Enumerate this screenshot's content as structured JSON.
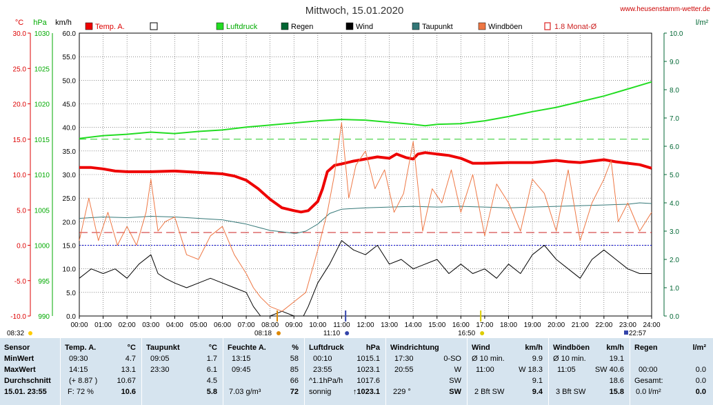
{
  "header": {
    "title": "Mittwoch, 15.01.2020",
    "website": "www.heusenstamm-wetter.de"
  },
  "chart_data": {
    "type": "line",
    "units": {
      "temp": "°C",
      "pressure": "hPa",
      "wind": "km/h",
      "rain": "l/m²"
    },
    "ticks": {
      "temp": [
        "30.0",
        "25.0",
        "20.0",
        "15.0",
        "10.0",
        "5.0",
        "0.0",
        "-5.0",
        "-10.0"
      ],
      "pressure": [
        "1030",
        "1025",
        "1020",
        "1015",
        "1010",
        "1005",
        "1000",
        "995",
        "990"
      ],
      "wind": [
        "60.0",
        "55.0",
        "50.0",
        "45.0",
        "40.0",
        "35.0",
        "30.0",
        "25.0",
        "20.0",
        "15.0",
        "10.0",
        "5.0",
        "0.0"
      ],
      "rain": [
        "10.0",
        "9.0",
        "8.0",
        "7.0",
        "6.0",
        "5.0",
        "4.0",
        "3.0",
        "2.0",
        "1.0",
        "0.0"
      ],
      "time": [
        "00:00",
        "01:00",
        "02:00",
        "03:00",
        "04:00",
        "05:00",
        "06:00",
        "07:00",
        "08:00",
        "09:00",
        "10:00",
        "11:00",
        "12:00",
        "13:00",
        "14:00",
        "15:00",
        "16:00",
        "17:00",
        "18:00",
        "19:00",
        "20:00",
        "21:00",
        "22:00",
        "23:00",
        "24:00"
      ]
    },
    "axis_ranges": {
      "temp": [
        -10,
        30
      ],
      "pressure": [
        990,
        1030
      ],
      "wind": [
        0,
        60
      ],
      "rain": [
        0,
        10
      ],
      "hours": [
        0,
        24
      ]
    },
    "legend": [
      {
        "label": "Temp. A.",
        "color": "#ee0000",
        "style": "filled"
      },
      {
        "label": "",
        "color": "#000000",
        "style": "empty"
      },
      {
        "label": "Luftdruck",
        "color": "#22dd22",
        "style": "filled"
      },
      {
        "label": "Regen",
        "color": "#006633",
        "style": "filled"
      },
      {
        "label": "Wind",
        "color": "#000000",
        "style": "filled"
      },
      {
        "label": "Taupunkt",
        "color": "#337777",
        "style": "filled"
      },
      {
        "label": "Windböen",
        "color": "#ee7744",
        "style": "filled"
      },
      {
        "label": "1.8 Monat-Ø",
        "color": "#dd2222",
        "style": "outline"
      }
    ],
    "sun_markers": {
      "sunrise": "08:18",
      "noon": "11:10",
      "sunset": "16:50",
      "left_label": "08:32",
      "right_label": "22:57"
    },
    "reference_lines": {
      "pressure_avg": 1015,
      "monthly_temp_avg": 1.8,
      "freezing": 0
    },
    "series": [
      {
        "name": "Temp. A.",
        "axis": "temp",
        "color": "#ee0000",
        "points": [
          [
            0,
            11.0
          ],
          [
            0.5,
            11.0
          ],
          [
            1,
            10.8
          ],
          [
            1.5,
            10.5
          ],
          [
            2,
            10.4
          ],
          [
            3,
            10.4
          ],
          [
            4,
            10.5
          ],
          [
            5,
            10.3
          ],
          [
            6,
            10.1
          ],
          [
            6.5,
            9.8
          ],
          [
            7,
            9.2
          ],
          [
            7.5,
            8.0
          ],
          [
            8,
            6.5
          ],
          [
            8.5,
            5.3
          ],
          [
            9,
            4.9
          ],
          [
            9.3,
            4.7
          ],
          [
            9.6,
            4.9
          ],
          [
            10,
            6.2
          ],
          [
            10.2,
            8.0
          ],
          [
            10.4,
            10.4
          ],
          [
            10.7,
            11.3
          ],
          [
            11,
            11.5
          ],
          [
            11.5,
            11.9
          ],
          [
            12,
            12.2
          ],
          [
            12.5,
            12.5
          ],
          [
            13,
            12.3
          ],
          [
            13.3,
            12.9
          ],
          [
            13.7,
            12.4
          ],
          [
            14,
            12.2
          ],
          [
            14.2,
            12.9
          ],
          [
            14.5,
            13.1
          ],
          [
            15,
            12.9
          ],
          [
            15.5,
            12.7
          ],
          [
            16,
            12.3
          ],
          [
            16.5,
            11.6
          ],
          [
            17,
            11.6
          ],
          [
            18,
            11.7
          ],
          [
            19,
            11.7
          ],
          [
            20,
            12.0
          ],
          [
            20.5,
            11.8
          ],
          [
            21,
            11.7
          ],
          [
            21.5,
            11.9
          ],
          [
            22,
            12.1
          ],
          [
            22.5,
            11.8
          ],
          [
            23,
            11.6
          ],
          [
            23.5,
            11.4
          ],
          [
            24,
            10.9
          ]
        ]
      },
      {
        "name": "Luftdruck",
        "axis": "pressure",
        "color": "#22dd22",
        "points": [
          [
            0,
            1015.1
          ],
          [
            1,
            1015.5
          ],
          [
            2,
            1015.7
          ],
          [
            3,
            1016.0
          ],
          [
            4,
            1015.8
          ],
          [
            5,
            1016.1
          ],
          [
            6,
            1016.3
          ],
          [
            7,
            1016.7
          ],
          [
            8,
            1017.0
          ],
          [
            9,
            1017.3
          ],
          [
            10,
            1017.6
          ],
          [
            11,
            1017.8
          ],
          [
            12,
            1017.7
          ],
          [
            13,
            1017.4
          ],
          [
            14,
            1017.1
          ],
          [
            14.5,
            1016.9
          ],
          [
            15,
            1017.1
          ],
          [
            16,
            1017.2
          ],
          [
            17,
            1017.6
          ],
          [
            18,
            1018.2
          ],
          [
            19,
            1018.9
          ],
          [
            20,
            1019.5
          ],
          [
            21,
            1020.3
          ],
          [
            22,
            1021.1
          ],
          [
            23,
            1022.1
          ],
          [
            24,
            1023.1
          ]
        ]
      },
      {
        "name": "Taupunkt",
        "axis": "temp",
        "color": "#337777",
        "points": [
          [
            0,
            3.8
          ],
          [
            1,
            4.0
          ],
          [
            2,
            3.9
          ],
          [
            3,
            4.1
          ],
          [
            4,
            4.0
          ],
          [
            5,
            3.8
          ],
          [
            6,
            3.6
          ],
          [
            7,
            3.0
          ],
          [
            8,
            2.1
          ],
          [
            8.5,
            1.9
          ],
          [
            9,
            1.7
          ],
          [
            9.1,
            1.7
          ],
          [
            9.5,
            2.0
          ],
          [
            10,
            3.0
          ],
          [
            10.5,
            4.5
          ],
          [
            11,
            5.1
          ],
          [
            12,
            5.3
          ],
          [
            13,
            5.4
          ],
          [
            14,
            5.5
          ],
          [
            15,
            5.4
          ],
          [
            16,
            5.5
          ],
          [
            17,
            5.4
          ],
          [
            18,
            5.3
          ],
          [
            19,
            5.4
          ],
          [
            20,
            5.5
          ],
          [
            21,
            5.6
          ],
          [
            22,
            5.7
          ],
          [
            23,
            5.8
          ],
          [
            23.5,
            6.0
          ],
          [
            24,
            5.9
          ]
        ]
      },
      {
        "name": "Wind",
        "axis": "wind",
        "color": "#000000",
        "points": [
          [
            0,
            8
          ],
          [
            0.5,
            10
          ],
          [
            1,
            9
          ],
          [
            1.5,
            10
          ],
          [
            2,
            8
          ],
          [
            2.5,
            11
          ],
          [
            3,
            13
          ],
          [
            3.3,
            9
          ],
          [
            3.6,
            8
          ],
          [
            4,
            7
          ],
          [
            4.5,
            6
          ],
          [
            5,
            7
          ],
          [
            5.5,
            8
          ],
          [
            6,
            7
          ],
          [
            6.5,
            6
          ],
          [
            7,
            5
          ],
          [
            7.3,
            2
          ],
          [
            7.6,
            0
          ],
          [
            8,
            0
          ],
          [
            8.5,
            1
          ],
          [
            9,
            0
          ],
          [
            9.4,
            0
          ],
          [
            9.6,
            2
          ],
          [
            10,
            7
          ],
          [
            10.5,
            11
          ],
          [
            11,
            16
          ],
          [
            11.5,
            14
          ],
          [
            12,
            13
          ],
          [
            12.5,
            15
          ],
          [
            13,
            11
          ],
          [
            13.5,
            12
          ],
          [
            14,
            10
          ],
          [
            14.5,
            11
          ],
          [
            15,
            12
          ],
          [
            15.5,
            9
          ],
          [
            16,
            11
          ],
          [
            16.5,
            9
          ],
          [
            17,
            10
          ],
          [
            17.5,
            8
          ],
          [
            18,
            11
          ],
          [
            18.5,
            9
          ],
          [
            19,
            13
          ],
          [
            19.5,
            15
          ],
          [
            20,
            12
          ],
          [
            20.5,
            10
          ],
          [
            21,
            8
          ],
          [
            21.5,
            12
          ],
          [
            22,
            14
          ],
          [
            22.5,
            12
          ],
          [
            23,
            10
          ],
          [
            23.5,
            9
          ],
          [
            24,
            9
          ]
        ]
      },
      {
        "name": "Windböen",
        "axis": "wind",
        "color": "#ee7744",
        "points": [
          [
            0,
            16
          ],
          [
            0.4,
            25
          ],
          [
            0.8,
            16
          ],
          [
            1.2,
            22
          ],
          [
            1.6,
            15
          ],
          [
            2,
            19
          ],
          [
            2.4,
            15
          ],
          [
            2.8,
            22
          ],
          [
            3,
            29
          ],
          [
            3.3,
            18
          ],
          [
            3.6,
            20
          ],
          [
            4,
            21
          ],
          [
            4.5,
            13
          ],
          [
            5,
            12
          ],
          [
            5.5,
            17
          ],
          [
            6,
            19
          ],
          [
            6.5,
            13
          ],
          [
            7,
            9
          ],
          [
            7.3,
            6
          ],
          [
            7.6,
            4
          ],
          [
            8,
            2
          ],
          [
            8.5,
            1
          ],
          [
            9,
            3
          ],
          [
            9.5,
            5
          ],
          [
            10,
            14
          ],
          [
            10.4,
            22
          ],
          [
            10.7,
            30
          ],
          [
            11,
            41
          ],
          [
            11.3,
            25
          ],
          [
            11.6,
            32
          ],
          [
            12,
            35
          ],
          [
            12.4,
            27
          ],
          [
            12.8,
            31
          ],
          [
            13.2,
            22
          ],
          [
            13.6,
            26
          ],
          [
            14,
            37
          ],
          [
            14.4,
            18
          ],
          [
            14.8,
            27
          ],
          [
            15.2,
            24
          ],
          [
            15.6,
            31
          ],
          [
            16,
            22
          ],
          [
            16.5,
            30
          ],
          [
            17,
            17
          ],
          [
            17.5,
            28
          ],
          [
            18,
            24
          ],
          [
            18.5,
            18
          ],
          [
            19,
            29
          ],
          [
            19.5,
            26
          ],
          [
            20,
            18
          ],
          [
            20.5,
            31
          ],
          [
            21,
            16
          ],
          [
            21.5,
            24
          ],
          [
            22,
            29
          ],
          [
            22.3,
            33
          ],
          [
            22.6,
            20
          ],
          [
            23,
            24
          ],
          [
            23.5,
            18
          ],
          [
            24,
            22
          ]
        ]
      }
    ]
  },
  "table": {
    "sensor": {
      "title": "Sensor",
      "min": "MinWert",
      "max": "MaxWert",
      "avg": "Durchschnitt",
      "date": "15.01. 23:55"
    },
    "temp": {
      "title": "Temp. A.",
      "unit": "°C",
      "min_time": "09:30",
      "min_val": "4.7",
      "max_time": "14:15",
      "max_val": "13.1",
      "avg_diff": "(+ 8.87 )",
      "avg_val": "10.67",
      "hum": "F: 72 %",
      "current": "10.6"
    },
    "dew": {
      "title": "Taupunkt",
      "unit": "°C",
      "min_time": "09:05",
      "min_val": "1.7",
      "max_time": "23:30",
      "max_val": "6.1",
      "avg_val": "4.5",
      "current": "5.8"
    },
    "hum": {
      "title": "Feuchte A.",
      "unit": "%",
      "min_time": "13:15",
      "min_val": "58",
      "max_time": "09:45",
      "max_val": "85",
      "avg_val": "66",
      "abs": "7.03 g/m³",
      "current": "72"
    },
    "press": {
      "title": "Luftdruck",
      "unit": "hPa",
      "min_time": "00:10",
      "min_val": "1015.1",
      "max_time": "23:55",
      "max_val": "1023.1",
      "trend": "^1.1hPa/h",
      "avg_val": "1017.6",
      "weather": "sonnig",
      "current": "↑1023.1"
    },
    "wdir": {
      "title": "Windrichtung",
      "min_time": "17:30",
      "min_val": "0-SO",
      "max_time": "20:55",
      "max_val": "W",
      "avg_val": "SW",
      "deg": "229 °",
      "current": "SW"
    },
    "wind": {
      "title": "Wind",
      "unit": "km/h",
      "min_label": "Ø 10 min.",
      "min_val": "9.9",
      "max_time": "11:00",
      "max_val": "W 18.3",
      "avg_val": "9.1",
      "bft": "2 Bft SW",
      "current": "9.4"
    },
    "gust": {
      "title": "Windböen",
      "unit": "km/h",
      "min_label": "Ø 10 min.",
      "min_val": "19.1",
      "max_time": "11:05",
      "max_val": "SW 40.6",
      "avg_val": "18.6",
      "bft": "3 Bft SW",
      "current": "15.8"
    },
    "rain": {
      "title": "Regen",
      "unit": "l/m²",
      "min_time": "00:00",
      "min_val": "0.0",
      "total_label": "Gesamt:",
      "total_val": "0.0",
      "current_label": "0.0 l/m²",
      "current": "0.0"
    }
  }
}
